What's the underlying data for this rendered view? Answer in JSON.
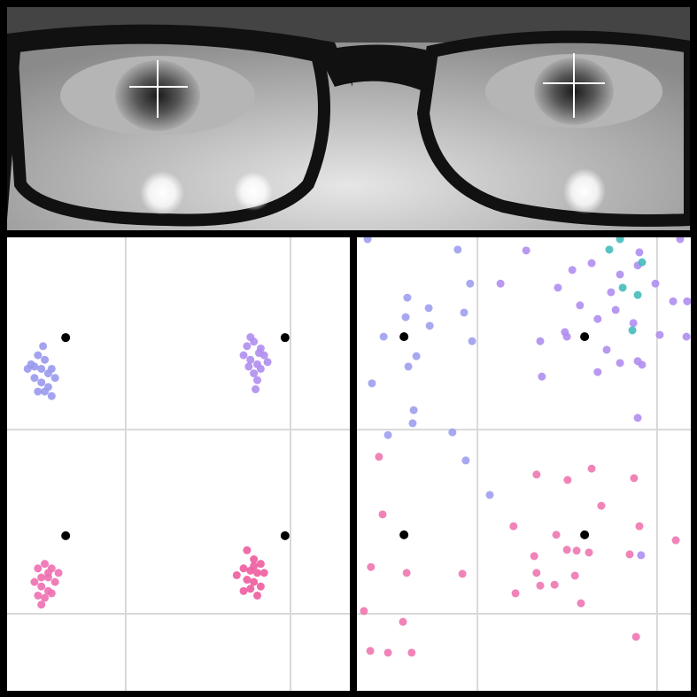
{
  "chart_data": [
    {
      "type": "scatter",
      "xlim": [
        0,
        100
      ],
      "ylim": [
        0,
        100
      ],
      "grid_x": [
        34.6,
        82.7
      ],
      "grid_y": [
        57.6,
        17.0
      ],
      "series": [
        {
          "color": "#000000",
          "x": [
            17.1,
            81.1,
            17.1,
            81.1
          ],
          "y": [
            77.9,
            77.9,
            34.2,
            34.2
          ]
        },
        {
          "color": "#9999ee",
          "x": [
            7,
            9,
            11,
            12,
            8,
            10,
            13,
            6,
            9,
            11,
            12,
            14,
            8,
            10,
            10.5,
            13
          ],
          "y": [
            72,
            74,
            73,
            70,
            69,
            68,
            71,
            71,
            66,
            66,
            67,
            69,
            71.5,
            71,
            76,
            65
          ]
        },
        {
          "color": "#b08ef0",
          "x": [
            70,
            72,
            74,
            71,
            73,
            75,
            69,
            72,
            74,
            70.5,
            73,
            76,
            71,
            73.5,
            72.5
          ],
          "y": [
            76,
            77,
            75.5,
            73,
            72,
            74,
            74,
            70,
            71,
            71.5,
            68.5,
            72.5,
            78,
            74.5,
            66.5
          ]
        },
        {
          "color": "#ee6fb0",
          "x": [
            9,
            11,
            13,
            10,
            12,
            14,
            8,
            10,
            12,
            11,
            9,
            13,
            10,
            12,
            15
          ],
          "y": [
            27,
            28,
            27,
            25,
            25,
            24,
            24,
            23,
            22,
            20.5,
            21,
            21.5,
            19,
            26,
            26
          ]
        },
        {
          "color": "#ee5c9e",
          "x": [
            70,
            72,
            74,
            69,
            71,
            73,
            75,
            67,
            70,
            72,
            74,
            69,
            71,
            73,
            72
          ],
          "y": [
            31,
            29,
            28,
            27,
            26.5,
            26,
            26,
            25.5,
            24.5,
            24,
            23,
            22,
            22.5,
            21,
            27.5
          ]
        }
      ]
    },
    {
      "type": "scatter",
      "xlim": [
        0,
        100
      ],
      "ylim": [
        0,
        100
      ],
      "grid_x": [
        36.1,
        89.9
      ],
      "grid_y": [
        57.6,
        17.0
      ],
      "series": [
        {
          "color": "#000000",
          "x": [
            14.1,
            68.2,
            14.1,
            68.2
          ],
          "y": [
            78.1,
            78.1,
            34.4,
            34.4
          ]
        },
        {
          "color": "#9f9fef",
          "x": [
            3.2,
            30.2,
            15.1,
            21.5,
            14.6,
            32.1,
            8.0,
            21.8,
            17.8,
            15.4,
            4.5,
            17.0,
            16.7,
            9.3,
            28.6,
            32.6,
            33.9,
            39.8,
            34.5
          ],
          "y": [
            99.6,
            97.3,
            86.7,
            84.4,
            82.4,
            83.4,
            78.1,
            80.5,
            73.8,
            71.5,
            67.8,
            61.9,
            59.0,
            56.4,
            57.0,
            50.8,
            89.8,
            43.2,
            77.1
          ]
        },
        {
          "color": "#b08ef0",
          "x": [
            50.7,
            43.0,
            64.5,
            70.3,
            60.2,
            66.8,
            76.1,
            78.8,
            84.1,
            89.4,
            94.7,
            98.9,
            54.9,
            62.3,
            72.1,
            77.5,
            82.8,
            90.7,
            98.7,
            74.8,
            78.8,
            84.1,
            85.4,
            55.4,
            72.1,
            84.1,
            62.9,
            96.8,
            84.6,
            85.1
          ],
          "y": [
            97.1,
            89.8,
            92.8,
            94.3,
            88.9,
            85.0,
            87.9,
            91.8,
            93.8,
            89.8,
            85.9,
            85.9,
            77.1,
            79.1,
            82.0,
            84.0,
            81.1,
            78.5,
            78.1,
            75.2,
            72.3,
            72.7,
            71.9,
            69.3,
            70.3,
            60.2,
            78.1,
            99.6,
            96.7,
            29.9
          ]
        },
        {
          "color": "#44bbbb",
          "x": [
            75.6,
            78.8,
            85.4,
            79.6,
            84.1,
            82.5
          ],
          "y": [
            97.3,
            99.6,
            94.5,
            88.9,
            87.3,
            79.5
          ]
        },
        {
          "color": "#ee77b0",
          "x": [
            6.6,
            7.7,
            4.2,
            14.9,
            2.1,
            13.8,
            4.0,
            9.3,
            16.4,
            31.6,
            46.9,
            53.8,
            63.1,
            70.3,
            83.0,
            73.2,
            84.6,
            95.5,
            59.7,
            62.9,
            53.1,
            65.8,
            69.5,
            81.7,
            53.8,
            59.2,
            65.3,
            54.9,
            47.5,
            67.1,
            83.6
          ],
          "y": [
            51.6,
            38.9,
            27.3,
            26.0,
            17.6,
            15.2,
            8.8,
            8.4,
            8.4,
            25.8,
            36.3,
            47.7,
            46.5,
            49.0,
            46.9,
            40.8,
            36.3,
            33.2,
            34.4,
            31.1,
            29.7,
            30.9,
            30.5,
            30.1,
            26.0,
            23.4,
            25.4,
            23.2,
            21.5,
            19.3,
            11.9
          ]
        }
      ]
    }
  ]
}
